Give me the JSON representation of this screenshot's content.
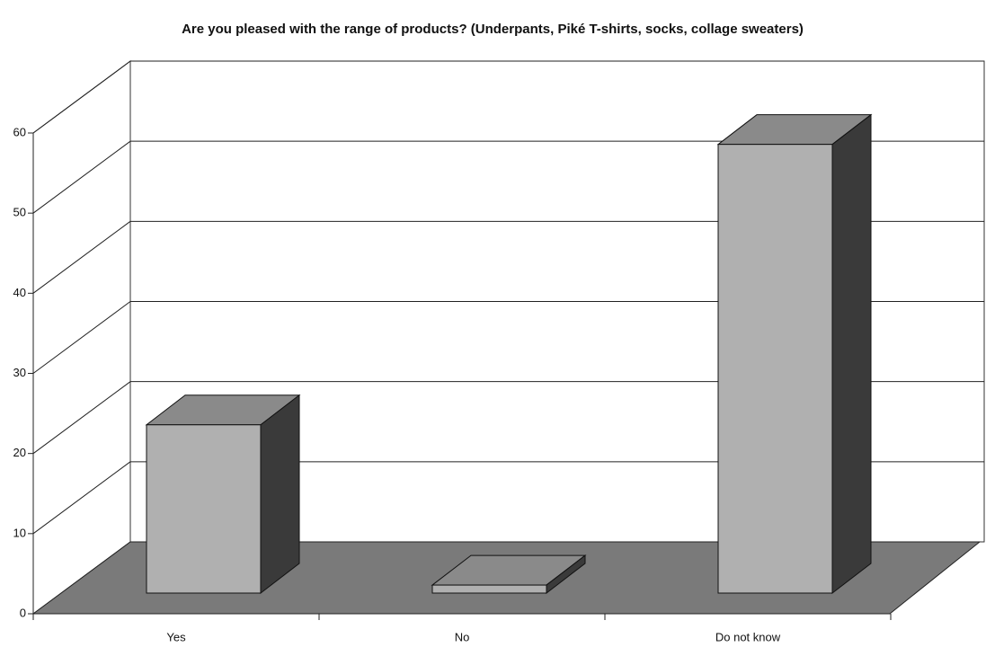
{
  "chart_data": {
    "type": "bar3d",
    "title": "Are you pleased with the range of products? (Underpants, Piké T-shirts, socks, collage sweaters)",
    "categories": [
      "Yes",
      "No",
      "Do not know"
    ],
    "values": [
      21,
      1,
      56
    ],
    "color": "#b0b0b0",
    "ylim": [
      0,
      60
    ],
    "yticks": [
      0,
      10,
      20,
      30,
      40,
      50,
      60
    ],
    "grid": true
  }
}
